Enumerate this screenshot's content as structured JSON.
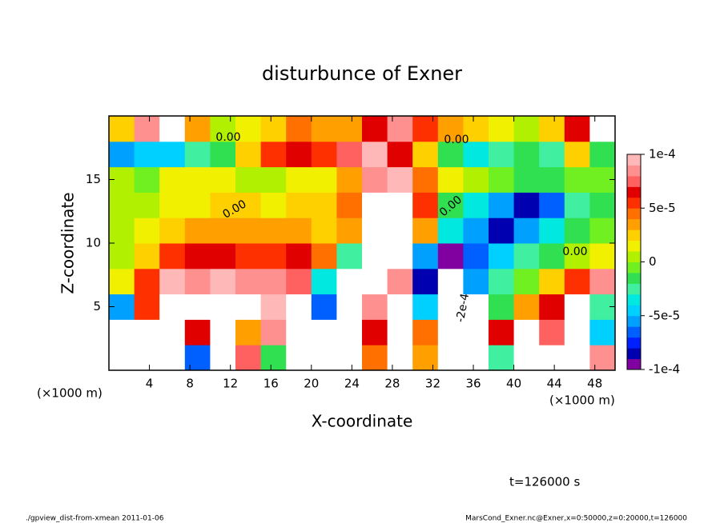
{
  "chart_data": {
    "type": "heatmap",
    "title": "disturbunce of Exner",
    "x_label": "X-coordinate",
    "y_label": "Z-coordinate",
    "x_unit": "(×1000 m)",
    "y_unit": "(×1000 m)",
    "xlim": [
      0,
      50
    ],
    "ylim": [
      0,
      20
    ],
    "xticks": [
      4,
      8,
      12,
      16,
      20,
      24,
      28,
      32,
      36,
      40,
      44,
      48
    ],
    "yticks": [
      5,
      10,
      15
    ],
    "x": [
      1.25,
      3.75,
      6.25,
      8.75,
      11.25,
      13.75,
      16.25,
      18.75,
      21.25,
      23.75,
      26.25,
      28.75,
      31.25,
      33.75,
      36.25,
      38.75,
      41.25,
      43.75,
      46.25,
      48.75
    ],
    "y": [
      1,
      3,
      5,
      7,
      9,
      11,
      13,
      15,
      17,
      19
    ],
    "z": [
      [
        0.00013,
        0.00012,
        0.00012,
        -7e-05,
        0.00012,
        7e-05,
        -2e-05,
        0.00012,
        0.00011,
        0.00012,
        4e-05,
        0.00012,
        3e-05,
        0.00012,
        0.00013,
        -3e-05,
        0.00012,
        0.00011,
        0.00012,
        8e-05
      ],
      [
        0.00012,
        0.00011,
        0.00012,
        6e-05,
        0.00013,
        3e-05,
        8e-05,
        0.00012,
        0.00011,
        0.00012,
        6e-05,
        0.00013,
        4e-05,
        0.00013,
        0.00012,
        6e-05,
        0.00011,
        7e-05,
        0.00012,
        -5e-05
      ],
      [
        -6e-05,
        5e-05,
        0.00012,
        0.00012,
        0.00012,
        0.00011,
        9e-05,
        0.00012,
        -7e-05,
        0.00013,
        8e-05,
        0.00012,
        -5e-05,
        0.00014,
        0.00013,
        -2e-05,
        3e-05,
        6e-05,
        0.00011,
        -3e-05
      ],
      [
        1e-05,
        5e-05,
        9e-05,
        8e-05,
        9e-05,
        8e-05,
        8e-05,
        7e-05,
        -4e-05,
        0.00012,
        0.00012,
        8e-05,
        -8e-05,
        0.00013,
        -6e-05,
        -3e-05,
        -1e-05,
        2e-05,
        5e-05,
        8e-05
      ],
      [
        0,
        2e-05,
        5e-05,
        6e-05,
        6e-05,
        5e-05,
        5e-05,
        6e-05,
        4e-05,
        -3e-05,
        0.00011,
        0.00012,
        -6e-05,
        -9e-05,
        -7e-05,
        -5e-05,
        -3e-05,
        -2e-05,
        0,
        1e-05
      ],
      [
        0,
        1e-05,
        2e-05,
        3e-05,
        3e-05,
        3e-05,
        3e-05,
        3e-05,
        2e-05,
        3e-05,
        0.00012,
        0.00013,
        3e-05,
        -4e-05,
        -6e-05,
        -8e-05,
        -6e-05,
        -4e-05,
        -2e-05,
        -1e-05
      ],
      [
        0,
        0,
        1e-05,
        1e-05,
        2e-05,
        2e-05,
        1e-05,
        2e-05,
        2e-05,
        4e-05,
        0.00011,
        0.00012,
        5e-05,
        -2e-05,
        -4e-05,
        -6e-05,
        -8e-05,
        -7e-05,
        -3e-05,
        -2e-05
      ],
      [
        0,
        -1e-05,
        1e-05,
        1e-05,
        1e-05,
        0,
        0,
        1e-05,
        1e-05,
        3e-05,
        8e-05,
        9e-05,
        4e-05,
        1e-05,
        0,
        -1e-05,
        -2e-05,
        -2e-05,
        -1e-05,
        -1e-05
      ],
      [
        -6e-05,
        -5e-05,
        -5e-05,
        -3e-05,
        -2e-05,
        2e-05,
        5e-05,
        6e-05,
        5e-05,
        7e-05,
        9e-05,
        6e-05,
        2e-05,
        -2e-05,
        -4e-05,
        -3e-05,
        -2e-05,
        -3e-05,
        2e-05,
        -2e-05
      ],
      [
        2e-05,
        8e-05,
        0.00012,
        3e-05,
        0,
        1e-05,
        2e-05,
        4e-05,
        3e-05,
        3e-05,
        6e-05,
        8e-05,
        5e-05,
        3e-05,
        2e-05,
        1e-05,
        0,
        2e-05,
        6e-05,
        0.00012
      ]
    ],
    "colorbar": {
      "clim": [
        -0.0001,
        0.0001
      ],
      "ticks": [
        {
          "value": 0.0001,
          "label": "1e-4"
        },
        {
          "value": 5e-05,
          "label": "5e-5"
        },
        0,
        {
          "value": -5e-05,
          "label": "-5e-5"
        },
        {
          "value": -0.0001,
          "label": "-1e-4"
        }
      ],
      "colors": [
        "#8000a0",
        "#0000b0",
        "#0020ff",
        "#0060ff",
        "#00a0ff",
        "#00d0ff",
        "#00e8e0",
        "#40f0a0",
        "#30e050",
        "#70f020",
        "#b0f000",
        "#f0f000",
        "#ffd000",
        "#ffa000",
        "#ff7000",
        "#ff3000",
        "#e00000",
        "#ff6060",
        "#ff9090",
        "#ffb8b8"
      ],
      "over_color": "#ffffff"
    },
    "annotations": [
      "0.00",
      "0.00",
      "0.00",
      "0.00",
      "0.00",
      "-2e-4"
    ],
    "time_label": "t=126000 s",
    "footer_left": "./gpview_dist-from-xmean  2011-01-06",
    "footer_right": "MarsCond_Exner.nc@Exner,x=0:50000,z=0:20000,t=126000"
  }
}
